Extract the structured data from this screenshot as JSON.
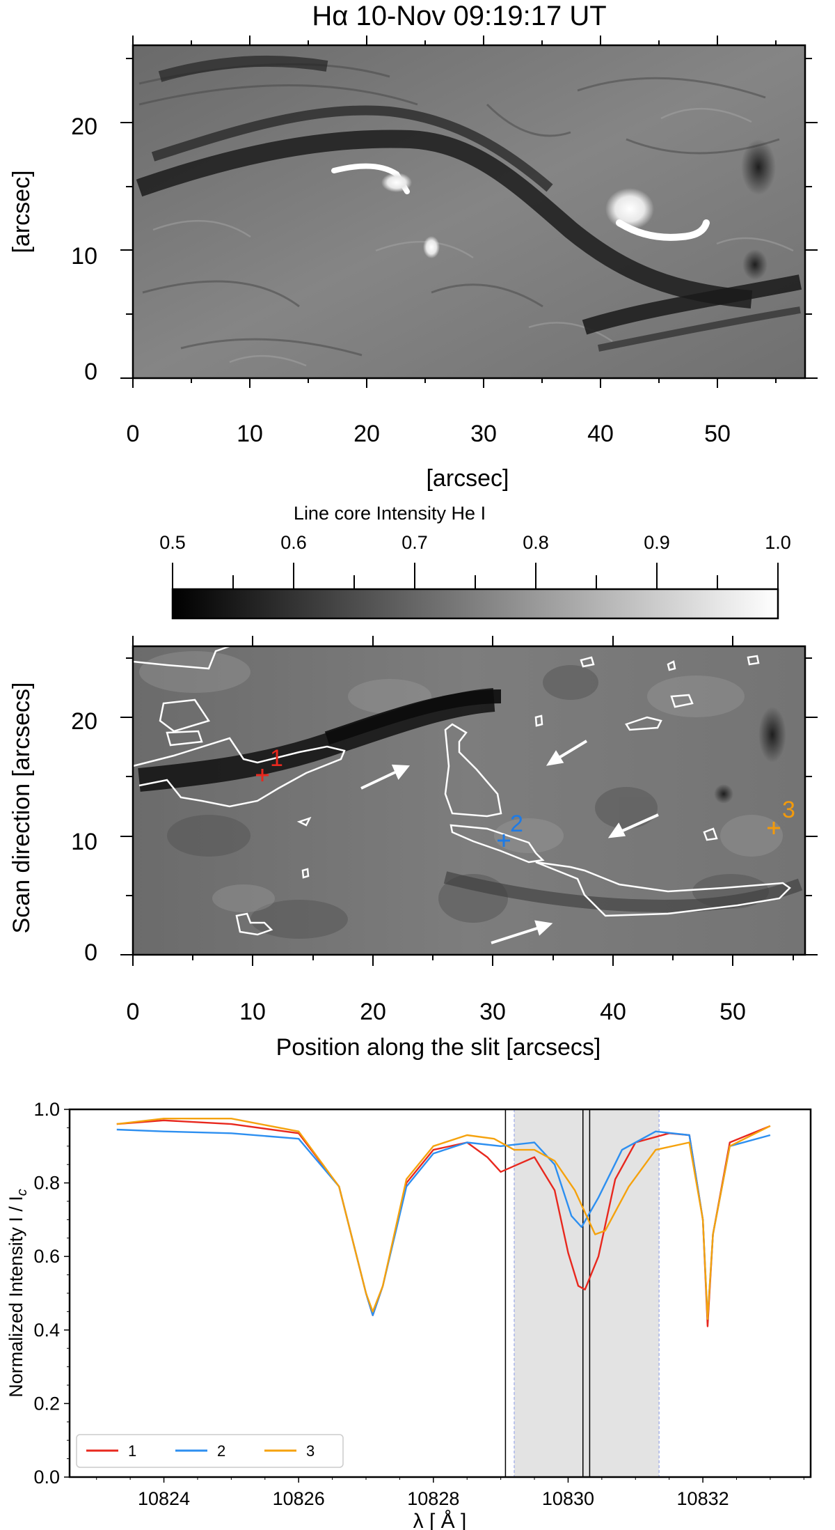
{
  "chart_data": [
    {
      "type": "heatmap",
      "title": "Hα 10-Nov 09:19:17 UT",
      "xlabel": "[arcsec]",
      "ylabel": "[arcsec]",
      "xlim": [
        0,
        57.5
      ],
      "ylim": [
        0,
        26
      ],
      "x_ticks": [
        0,
        10,
        20,
        30,
        40,
        50
      ],
      "y_ticks": [
        0,
        10,
        20
      ],
      "colormap": "gray"
    },
    {
      "type": "heatmap",
      "title": "Line core Intensity He I",
      "colorbar_ticks": [
        0.5,
        0.6,
        0.7,
        0.8,
        0.9,
        1.0
      ],
      "colorbar_tick_labels": [
        "0.5",
        "0.6",
        "0.7",
        "0.8",
        "0.9",
        "1.0"
      ],
      "clim": [
        0.5,
        1.0
      ]
    },
    {
      "type": "heatmap",
      "xlabel": "Position along the slit [arcsecs]",
      "ylabel": "Scan direction [arcsecs]",
      "xlim": [
        0,
        56
      ],
      "ylim": [
        0,
        26
      ],
      "x_ticks": [
        0,
        10,
        20,
        30,
        40,
        50
      ],
      "y_ticks": [
        0,
        10,
        20
      ],
      "markers": [
        {
          "label": "1",
          "x": 10.8,
          "y": 15.1,
          "color": "#e8281e"
        },
        {
          "label": "2",
          "x": 31.0,
          "y": 9.6,
          "color": "#1e7be6"
        },
        {
          "label": "3",
          "x": 53.5,
          "y": 10.7,
          "color": "#f29a0c"
        }
      ],
      "arrows": [
        {
          "from": [
            19.3,
            13.0
          ],
          "to": [
            23.3,
            15.1
          ]
        },
        {
          "from": [
            38.9,
            17.5
          ],
          "to": [
            35.1,
            15.4
          ]
        },
        {
          "from": [
            44.5,
            11.4
          ],
          "to": [
            40.1,
            9.4
          ]
        },
        {
          "from": [
            30.5,
            0.9
          ],
          "to": [
            35.4,
            2.6
          ]
        }
      ]
    },
    {
      "type": "line",
      "xlabel": "λ [ Å ]",
      "ylabel": "Normalized Intensity I / Ic",
      "xlim": [
        10822.6,
        10833.6
      ],
      "ylim": [
        0.0,
        1.0
      ],
      "x_ticks": [
        10824,
        10826,
        10828,
        10830,
        10832
      ],
      "y_ticks": [
        0.0,
        0.2,
        0.4,
        0.6,
        0.8,
        1.0
      ],
      "y_tick_labels": [
        "0.0",
        "0.2",
        "0.4",
        "0.6",
        "0.8",
        "1.0"
      ],
      "shaded_band": [
        10829.2,
        10831.35
      ],
      "vertical_lines": [
        10829.07,
        10830.22,
        10830.32
      ],
      "legend_position": "lower-left",
      "series": [
        {
          "name": "1",
          "color": "#e8281e",
          "points": [
            [
              10823.3,
              0.96
            ],
            [
              10824.0,
              0.97
            ],
            [
              10825.0,
              0.96
            ],
            [
              10826.0,
              0.935
            ],
            [
              10826.6,
              0.79
            ],
            [
              10827.0,
              0.5
            ],
            [
              10827.1,
              0.44
            ],
            [
              10827.25,
              0.52
            ],
            [
              10827.6,
              0.8
            ],
            [
              10828.0,
              0.89
            ],
            [
              10828.5,
              0.91
            ],
            [
              10828.8,
              0.87
            ],
            [
              10829.0,
              0.83
            ],
            [
              10829.25,
              0.85
            ],
            [
              10829.5,
              0.87
            ],
            [
              10829.8,
              0.78
            ],
            [
              10830.0,
              0.61
            ],
            [
              10830.15,
              0.52
            ],
            [
              10830.25,
              0.51
            ],
            [
              10830.45,
              0.6
            ],
            [
              10830.7,
              0.81
            ],
            [
              10831.0,
              0.91
            ],
            [
              10831.5,
              0.935
            ],
            [
              10831.8,
              0.93
            ],
            [
              10832.0,
              0.7
            ],
            [
              10832.07,
              0.41
            ],
            [
              10832.15,
              0.66
            ],
            [
              10832.4,
              0.91
            ],
            [
              10833.0,
              0.955
            ]
          ]
        },
        {
          "name": "2",
          "color": "#2d8ff0",
          "points": [
            [
              10823.3,
              0.945
            ],
            [
              10824.0,
              0.94
            ],
            [
              10825.0,
              0.935
            ],
            [
              10826.0,
              0.92
            ],
            [
              10826.6,
              0.79
            ],
            [
              10827.0,
              0.5
            ],
            [
              10827.1,
              0.44
            ],
            [
              10827.25,
              0.52
            ],
            [
              10827.6,
              0.79
            ],
            [
              10828.0,
              0.88
            ],
            [
              10828.5,
              0.91
            ],
            [
              10829.0,
              0.9
            ],
            [
              10829.5,
              0.91
            ],
            [
              10829.8,
              0.85
            ],
            [
              10830.05,
              0.71
            ],
            [
              10830.2,
              0.68
            ],
            [
              10830.45,
              0.76
            ],
            [
              10830.8,
              0.89
            ],
            [
              10831.3,
              0.94
            ],
            [
              10831.8,
              0.93
            ],
            [
              10832.0,
              0.7
            ],
            [
              10832.07,
              0.43
            ],
            [
              10832.15,
              0.66
            ],
            [
              10832.4,
              0.9
            ],
            [
              10833.0,
              0.93
            ]
          ]
        },
        {
          "name": "3",
          "color": "#f5a20d",
          "points": [
            [
              10823.3,
              0.96
            ],
            [
              10824.0,
              0.975
            ],
            [
              10825.0,
              0.975
            ],
            [
              10826.0,
              0.94
            ],
            [
              10826.6,
              0.79
            ],
            [
              10827.0,
              0.5
            ],
            [
              10827.1,
              0.45
            ],
            [
              10827.25,
              0.52
            ],
            [
              10827.6,
              0.81
            ],
            [
              10828.0,
              0.9
            ],
            [
              10828.5,
              0.93
            ],
            [
              10828.9,
              0.92
            ],
            [
              10829.2,
              0.89
            ],
            [
              10829.5,
              0.89
            ],
            [
              10829.8,
              0.86
            ],
            [
              10830.1,
              0.78
            ],
            [
              10830.4,
              0.66
            ],
            [
              10830.55,
              0.67
            ],
            [
              10830.9,
              0.79
            ],
            [
              10831.3,
              0.89
            ],
            [
              10831.8,
              0.91
            ],
            [
              10832.0,
              0.7
            ],
            [
              10832.07,
              0.43
            ],
            [
              10832.15,
              0.66
            ],
            [
              10832.4,
              0.9
            ],
            [
              10833.0,
              0.955
            ]
          ]
        }
      ]
    }
  ]
}
